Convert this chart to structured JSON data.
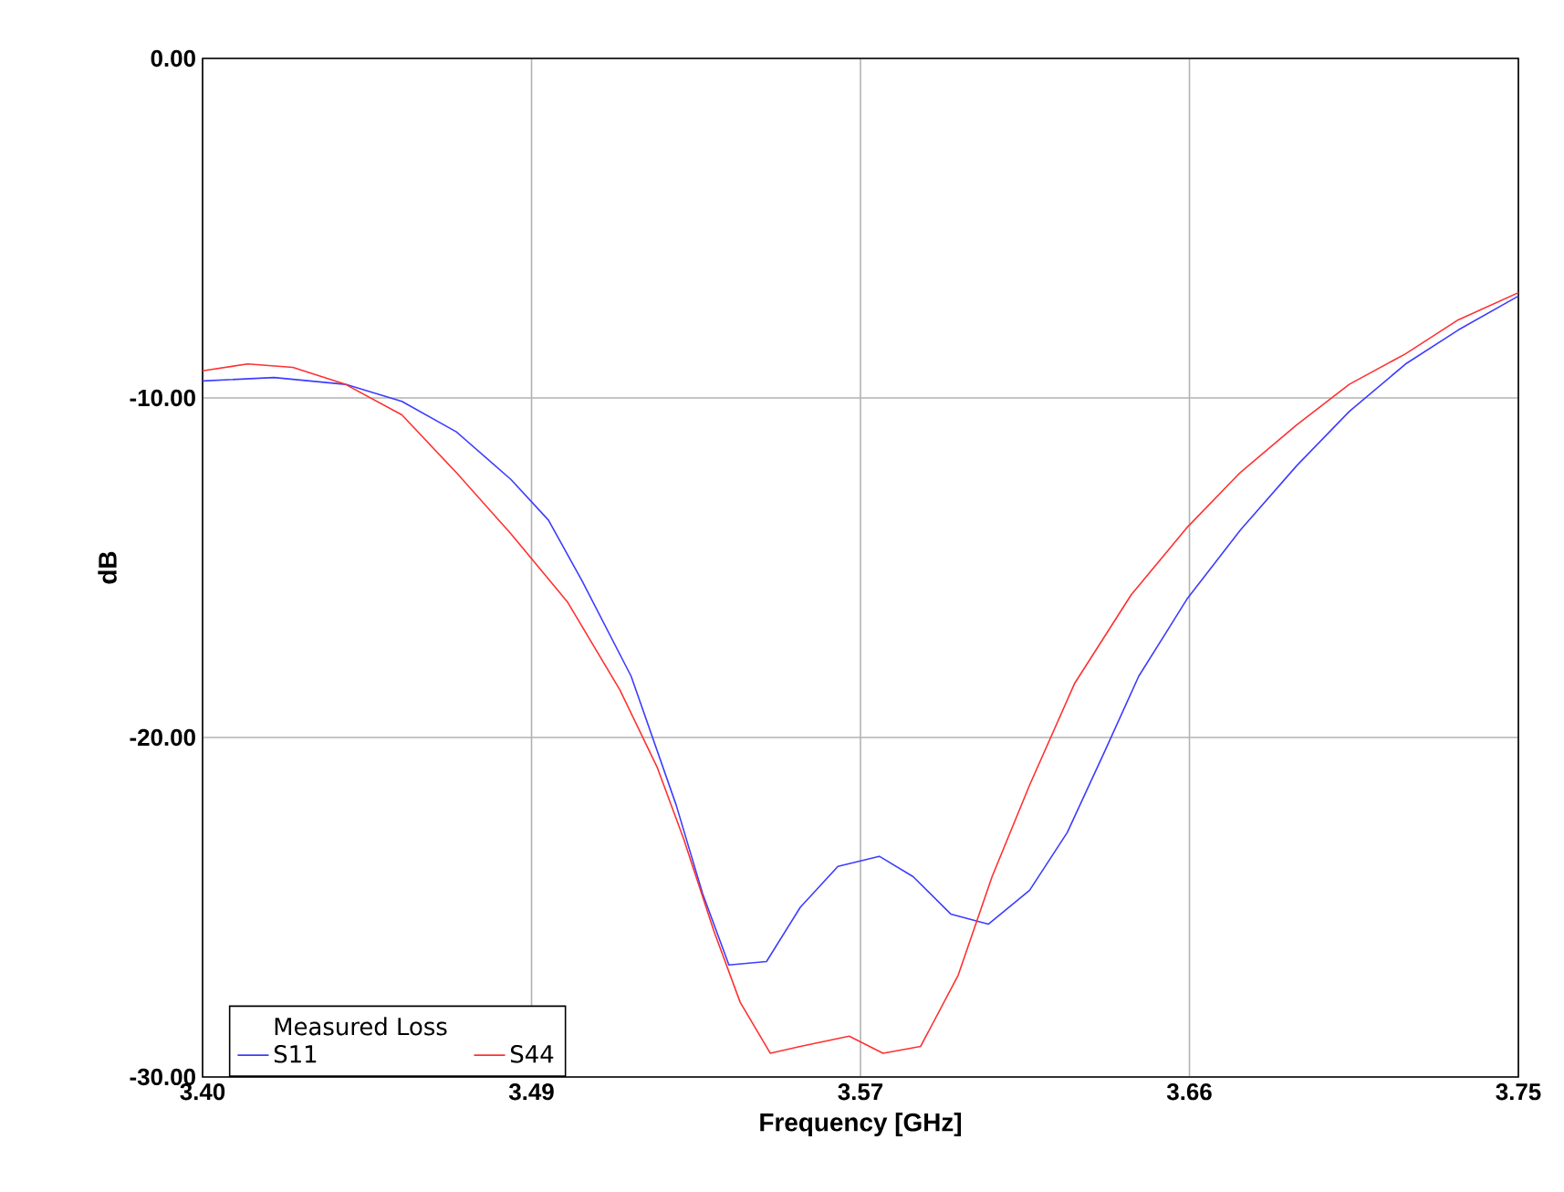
{
  "chart_data": {
    "type": "line",
    "xlabel": "Frequency [GHz]",
    "ylabel": "dB",
    "legend_title": "Measured Loss",
    "legend": "bottom left",
    "grid": true,
    "marker": "none",
    "line_style": "solid",
    "xlim": [
      3.4,
      3.75
    ],
    "ylim": [
      -30,
      0
    ],
    "xticks": [
      {
        "value": 3.4,
        "label": "3.40"
      },
      {
        "value": 3.4875,
        "label": "3.49"
      },
      {
        "value": 3.575,
        "label": "3.57"
      },
      {
        "value": 3.6625,
        "label": "3.66"
      },
      {
        "value": 3.75,
        "label": "3.75"
      }
    ],
    "yticks": [
      {
        "value": -30,
        "label": "-30.00"
      },
      {
        "value": -20,
        "label": "-20.00"
      },
      {
        "value": -10,
        "label": "-10.00"
      },
      {
        "value": 0,
        "label": "0.00"
      }
    ],
    "series": [
      {
        "name": "S11",
        "color": "#3c3cff",
        "x": [
          3.4,
          3.419,
          3.438,
          3.453,
          3.4675,
          3.482,
          3.492,
          3.501,
          3.514,
          3.526,
          3.533,
          3.54,
          3.55,
          3.559,
          3.569,
          3.58,
          3.589,
          3.599,
          3.609,
          3.62,
          3.63,
          3.64,
          3.649,
          3.662,
          3.676,
          3.691,
          3.705,
          3.72,
          3.734,
          3.75
        ],
        "values": [
          -9.5,
          -9.4,
          -9.6,
          -10.1,
          -11.0,
          -12.4,
          -13.6,
          -15.4,
          -18.2,
          -22.0,
          -24.6,
          -26.7,
          -26.6,
          -25.0,
          -23.8,
          -23.5,
          -24.1,
          -25.2,
          -25.5,
          -24.5,
          -22.8,
          -20.4,
          -18.2,
          -15.9,
          -13.9,
          -12.0,
          -10.4,
          -9.0,
          -8.0,
          -7.0
        ]
      },
      {
        "name": "S44",
        "color": "#ff3030",
        "x": [
          3.4,
          3.412,
          3.424,
          3.438,
          3.453,
          3.4675,
          3.482,
          3.497,
          3.511,
          3.521,
          3.528,
          3.536,
          3.543,
          3.551,
          3.559,
          3.572,
          3.581,
          3.591,
          3.601,
          3.61,
          3.62,
          3.632,
          3.647,
          3.662,
          3.676,
          3.691,
          3.705,
          3.72,
          3.734,
          3.75
        ],
        "values": [
          -9.2,
          -9.0,
          -9.1,
          -9.6,
          -10.5,
          -12.2,
          -14.0,
          -16.0,
          -18.6,
          -20.9,
          -23.0,
          -25.7,
          -27.8,
          -29.3,
          -29.1,
          -28.8,
          -29.3,
          -29.1,
          -27.0,
          -24.1,
          -21.4,
          -18.4,
          -15.8,
          -13.8,
          -12.2,
          -10.8,
          -9.6,
          -8.7,
          -7.7,
          -6.9
        ]
      }
    ]
  }
}
